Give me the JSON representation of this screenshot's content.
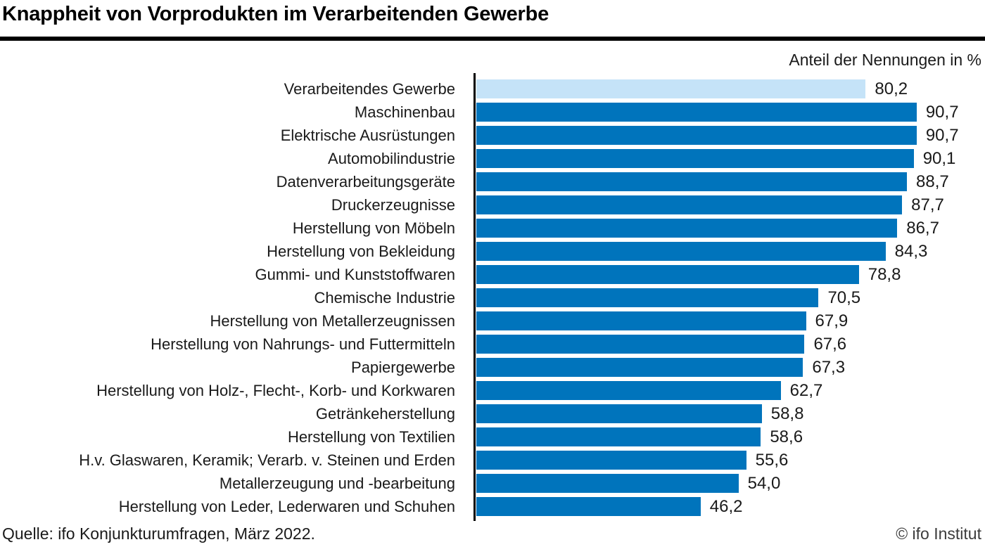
{
  "header": {
    "title": "Knappheit von Vorprodukten im Verarbeitenden Gewerbe",
    "axis_note": "Anteil der Nennungen in %"
  },
  "footer": {
    "source": "Quelle: ifo Konjunkturumfragen, März 2022.",
    "copyright": "© ifo Institut"
  },
  "colors": {
    "bar": "#0074BC",
    "highlight_bar": "#C5E3F8",
    "axis": "#000000",
    "text": "#1A1A1A"
  },
  "chart_data": {
    "type": "bar",
    "orientation": "horizontal",
    "title": "Knappheit von Vorprodukten im Verarbeitenden Gewerbe",
    "xlabel": "Anteil der Nennungen in %",
    "xlim": [
      0,
      100
    ],
    "grid": false,
    "legend": false,
    "highlight_index": 0,
    "categories": [
      "Verarbeitendes Gewerbe",
      "Maschinenbau",
      "Elektrische Ausrüstungen",
      "Automobilindustrie",
      "Datenverarbeitungsgeräte",
      "Druckerzeugnisse",
      "Herstellung von Möbeln",
      "Herstellung von Bekleidung",
      "Gummi- und Kunststoffwaren",
      "Chemische Industrie",
      "Herstellung von Metallerzeugnissen",
      "Herstellung von Nahrungs- und Futtermitteln",
      "Papiergewerbe",
      "Herstellung von Holz-, Flecht-, Korb- und Korkwaren",
      "Getränkeherstellung",
      "Herstellung von Textilien",
      "H.v. Glaswaren, Keramik; Verarb. v. Steinen und Erden",
      "Metallerzeugung und -bearbeitung",
      "Herstellung von Leder, Lederwaren und Schuhen"
    ],
    "values": [
      80.2,
      90.7,
      90.7,
      90.1,
      88.7,
      87.7,
      86.7,
      84.3,
      78.8,
      70.5,
      67.9,
      67.6,
      67.3,
      62.7,
      58.8,
      58.6,
      55.6,
      54.0,
      46.2
    ],
    "value_labels": [
      "80,2",
      "90,7",
      "90,7",
      "90,1",
      "88,7",
      "87,7",
      "86,7",
      "84,3",
      "78,8",
      "70,5",
      "67,9",
      "67,6",
      "67,3",
      "62,7",
      "58,8",
      "58,6",
      "55,6",
      "54,0",
      "46,2"
    ]
  }
}
